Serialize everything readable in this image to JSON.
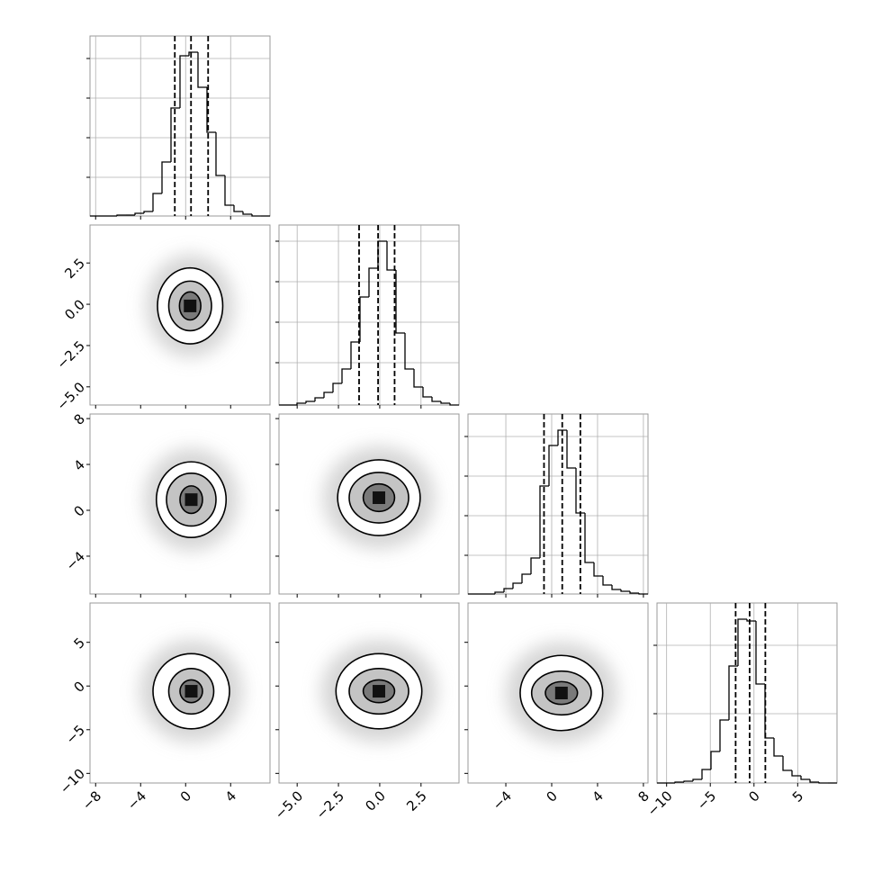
{
  "chart_data": {
    "type": "corner",
    "grid": true,
    "line_color": "#000000",
    "grid_color": "#b0b0b0",
    "contour_fills": [
      "#ffffff",
      "#c4c4c4",
      "#7a7a7a"
    ],
    "center_color": "#111111",
    "halo_color": "#d0d0d0",
    "variables": [
      {
        "lim": [
          -8.5,
          7.5
        ],
        "ticks": [
          {
            "value": -8,
            "label": "−8"
          },
          {
            "value": -4,
            "label": "−4"
          },
          0,
          4
        ],
        "bins": [
          -8.5,
          -7.7,
          -6.9,
          -6.1,
          -5.3,
          -4.5,
          -3.7,
          -2.9,
          -2.1,
          -1.3,
          -0.5,
          0.3,
          1.1,
          1.9,
          2.7,
          3.5,
          4.3,
          5.1,
          5.9,
          6.7,
          7.5
        ],
        "counts": [
          0,
          0,
          0,
          1,
          1,
          3,
          5,
          25,
          60,
          120,
          178,
          182,
          143,
          93,
          45,
          12,
          5,
          2,
          0,
          0
        ],
        "count_ylim": [
          0,
          200
        ],
        "count_ticks": [
          43,
          87,
          131,
          175
        ],
        "quantiles": [
          -0.96,
          0.48,
          2.0
        ]
      },
      {
        "lim": [
          -6.1,
          4.8
        ],
        "ticks": [
          {
            "value": -5,
            "label": "−5.0"
          },
          {
            "value": -2.5,
            "label": "−2.5"
          },
          {
            "value": 0,
            "label": "0.0"
          },
          {
            "value": 2.5,
            "label": "2.5"
          }
        ],
        "bins": [
          -6.1,
          -5.555,
          -5.01,
          -4.465,
          -3.92,
          -3.375,
          -2.83,
          -2.285,
          -1.74,
          -1.195,
          -0.65,
          -0.105,
          0.44,
          0.985,
          1.53,
          2.075,
          2.62,
          3.165,
          3.71,
          4.255,
          4.8
        ],
        "counts": [
          0,
          0,
          2,
          4,
          8,
          14,
          24,
          40,
          70,
          120,
          152,
          182,
          150,
          80,
          40,
          20,
          9,
          4,
          2,
          0
        ],
        "count_ylim": [
          0,
          200
        ],
        "count_ticks": [
          47,
          92,
          137,
          182
        ],
        "quantiles": [
          -1.25,
          -0.1,
          0.9
        ]
      },
      {
        "lim": [
          -7.3,
          8.4
        ],
        "ticks": [
          {
            "value": -4,
            "label": "−4"
          },
          0,
          4,
          8
        ],
        "bins": [
          -7.3,
          -6.515,
          -5.73,
          -4.945,
          -4.16,
          -3.375,
          -2.59,
          -1.805,
          -1.02,
          -0.235,
          0.55,
          1.335,
          2.12,
          2.905,
          3.69,
          4.475,
          5.26,
          6.045,
          6.83,
          7.615,
          8.4
        ],
        "counts": [
          0,
          0,
          0,
          2,
          6,
          12,
          22,
          40,
          120,
          165,
          182,
          140,
          90,
          35,
          20,
          10,
          5,
          3,
          1,
          0
        ],
        "count_ylim": [
          0,
          200
        ],
        "count_ticks": [
          43,
          87,
          131,
          175
        ],
        "quantiles": [
          -0.67,
          0.92,
          2.5
        ]
      },
      {
        "lim": [
          -11.1,
          9.5
        ],
        "ticks": [
          {
            "value": -10,
            "label": "−10"
          },
          {
            "value": -5,
            "label": "−5"
          },
          0,
          5
        ],
        "bins": [
          -11.1,
          -10.07,
          -9.04,
          -8.01,
          -6.98,
          -5.95,
          -4.92,
          -3.89,
          -2.86,
          -1.83,
          -0.8,
          0.23,
          1.26,
          2.29,
          3.32,
          4.35,
          5.38,
          6.41,
          7.44,
          8.47,
          9.5
        ],
        "counts": [
          0,
          0,
          1,
          2,
          4,
          15,
          35,
          70,
          130,
          182,
          180,
          110,
          50,
          30,
          14,
          8,
          4,
          1,
          0,
          0
        ],
        "count_ylim": [
          0,
          200
        ],
        "count_ticks": [
          77,
          153
        ],
        "quantiles": [
          -2.1,
          -0.5,
          1.3
        ]
      }
    ],
    "pairs": [
      {
        "x_var": 0,
        "y_var": 1,
        "center": [
          0.4,
          -0.1
        ],
        "contours": [
          {
            "rx": 2.9,
            "ry": 2.3
          },
          {
            "rx": 1.9,
            "ry": 1.5
          },
          {
            "rx": 0.95,
            "ry": 0.85
          }
        ]
      },
      {
        "x_var": 0,
        "y_var": 2,
        "center": [
          0.5,
          0.93
        ],
        "contours": [
          {
            "rx": 3.1,
            "ry": 3.3
          },
          {
            "rx": 2.2,
            "ry": 2.3
          },
          {
            "rx": 1.0,
            "ry": 1.2
          }
        ]
      },
      {
        "x_var": 1,
        "y_var": 2,
        "center": [
          -0.05,
          1.1
        ],
        "contours": [
          {
            "rx": 2.5,
            "ry": 3.3
          },
          {
            "rx": 1.8,
            "ry": 2.2
          },
          {
            "rx": 0.95,
            "ry": 1.2
          }
        ]
      },
      {
        "x_var": 0,
        "y_var": 3,
        "center": [
          0.5,
          -0.6
        ],
        "contours": [
          {
            "rx": 3.4,
            "ry": 4.3
          },
          {
            "rx": 2.0,
            "ry": 2.6
          },
          {
            "rx": 1.0,
            "ry": 1.3
          }
        ]
      },
      {
        "x_var": 1,
        "y_var": 3,
        "center": [
          -0.05,
          -0.6
        ],
        "contours": [
          {
            "rx": 2.6,
            "ry": 4.3
          },
          {
            "rx": 1.8,
            "ry": 2.6
          },
          {
            "rx": 0.95,
            "ry": 1.3
          }
        ]
      },
      {
        "x_var": 2,
        "y_var": 3,
        "center": [
          0.85,
          -0.8
        ],
        "contours": [
          {
            "rx": 3.6,
            "ry": 4.3
          },
          {
            "rx": 2.6,
            "ry": 2.5
          },
          {
            "rx": 1.4,
            "ry": 1.3
          }
        ]
      }
    ]
  }
}
